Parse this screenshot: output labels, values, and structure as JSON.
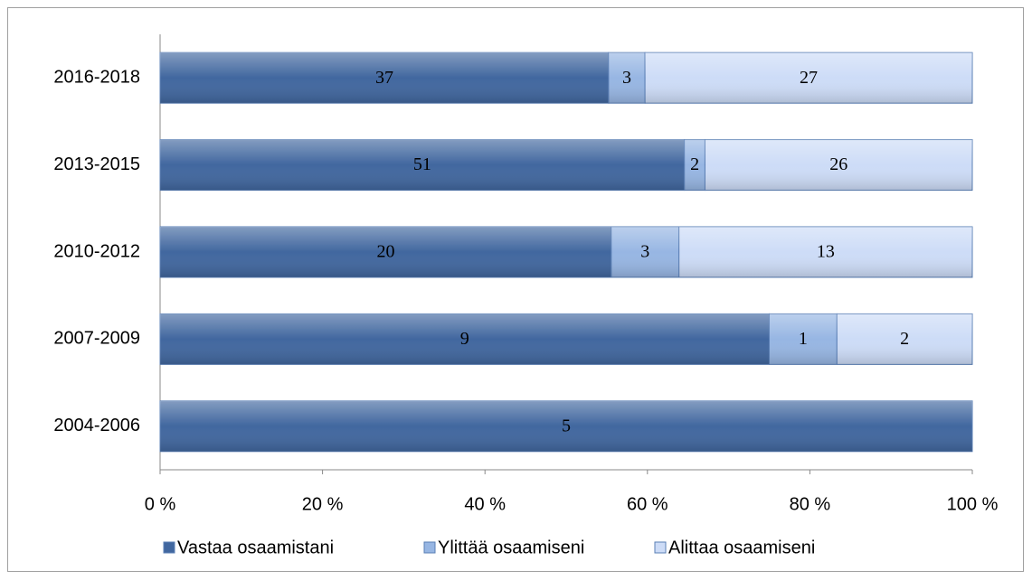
{
  "chart_data": {
    "type": "bar",
    "orientation": "horizontal",
    "stacking": "percent",
    "categories": [
      "2016-2018",
      "2013-2015",
      "2010-2012",
      "2007-2009",
      "2004-2006"
    ],
    "series": [
      {
        "name": "Vastaa osaamistani",
        "color": "#41679f",
        "values": [
          37,
          51,
          20,
          9,
          5
        ]
      },
      {
        "name": "Ylittää osaamiseni",
        "color": "#97b6e3",
        "values": [
          3,
          2,
          3,
          1,
          null
        ]
      },
      {
        "name": "Alittaa osaamiseni",
        "color": "#cddcf7",
        "values": [
          27,
          26,
          13,
          2,
          null
        ]
      }
    ],
    "xlim": [
      0,
      100
    ],
    "xticks": [
      {
        "value": 0,
        "label": "0 %"
      },
      {
        "value": 20,
        "label": "20 %"
      },
      {
        "value": 40,
        "label": "40 %"
      },
      {
        "value": 60,
        "label": "60 %"
      },
      {
        "value": 80,
        "label": "80 %"
      },
      {
        "value": 100,
        "label": "100 %"
      }
    ],
    "legend": "bottom",
    "grid": false
  }
}
